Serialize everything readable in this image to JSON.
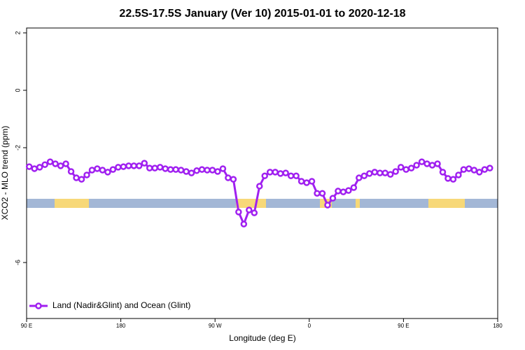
{
  "chart_data": {
    "type": "line",
    "title": "22.5S-17.5S January (Ver 10)   2015-01-01 to 2020-12-18",
    "x_label": "Longitude (deg E)",
    "y_label": "XCO2 - MLO trend (ppm)",
    "xlim": [
      90,
      540
    ],
    "ylim": [
      -7.95,
      2.17
    ],
    "xticks": [
      {
        "value": 90,
        "label": "90 E"
      },
      180,
      {
        "value": 270,
        "label": "90 W"
      },
      {
        "value": 360,
        "label": "0"
      },
      {
        "value": 450,
        "label": "90 E"
      },
      {
        "value": 540,
        "label": "180"
      }
    ],
    "yticks": [
      2,
      0,
      -2,
      -6
    ],
    "legend": "bottom-left",
    "x": [
      92.5,
      97.5,
      102.5,
      107.5,
      112.5,
      117.5,
      122.5,
      127.5,
      132.5,
      137.5,
      142.5,
      147.5,
      152.5,
      157.5,
      162.5,
      167.5,
      172.5,
      177.5,
      182.5,
      187.5,
      192.5,
      197.5,
      202.5,
      207.5,
      212.5,
      217.5,
      222.5,
      227.5,
      232.5,
      237.5,
      242.5,
      247.5,
      252.5,
      257.5,
      262.5,
      267.5,
      272.5,
      277.5,
      282.5,
      287.5,
      292.5,
      297.5,
      302.5,
      307.5,
      312.5,
      317.5,
      322.5,
      327.5,
      332.5,
      337.5,
      342.5,
      347.5,
      352.5,
      357.5,
      362.5,
      367.5,
      372.5,
      377.5,
      382.5,
      387.5,
      392.5,
      397.5,
      402.5,
      407.5,
      412.5,
      417.5,
      422.5,
      427.5,
      432.5,
      437.5,
      442.5,
      447.5,
      452.5,
      457.5,
      462.5,
      467.5,
      472.5,
      477.5,
      482.5,
      487.5,
      492.5,
      497.5,
      502.5,
      507.5,
      512.5,
      517.5,
      522.5,
      527.5,
      532.5
    ],
    "series": [
      {
        "name": "Land (Nadir&Glint) and Ocean (Glint)",
        "color": "#a020f0",
        "values": [
          -2.66,
          -2.73,
          -2.68,
          -2.59,
          -2.49,
          -2.56,
          -2.63,
          -2.56,
          -2.83,
          -3.05,
          -3.1,
          -2.95,
          -2.78,
          -2.73,
          -2.78,
          -2.85,
          -2.76,
          -2.68,
          -2.66,
          -2.63,
          -2.63,
          -2.63,
          -2.54,
          -2.71,
          -2.71,
          -2.68,
          -2.73,
          -2.76,
          -2.76,
          -2.78,
          -2.83,
          -2.88,
          -2.8,
          -2.76,
          -2.78,
          -2.78,
          -2.83,
          -2.73,
          -3.05,
          -3.1,
          -4.24,
          -4.66,
          -4.17,
          -4.27,
          -3.34,
          -2.98,
          -2.85,
          -2.85,
          -2.9,
          -2.88,
          -2.98,
          -2.98,
          -3.17,
          -3.22,
          -3.17,
          -3.59,
          -3.59,
          -4.0,
          -3.76,
          -3.51,
          -3.54,
          -3.49,
          -3.39,
          -3.05,
          -2.98,
          -2.9,
          -2.85,
          -2.88,
          -2.88,
          -2.93,
          -2.83,
          -2.68,
          -2.76,
          -2.71,
          -2.61,
          -2.49,
          -2.56,
          -2.61,
          -2.56,
          -2.85,
          -3.07,
          -3.1,
          -2.95,
          -2.76,
          -2.73,
          -2.78,
          -2.85,
          -2.76,
          -2.71
        ]
      }
    ]
  }
}
